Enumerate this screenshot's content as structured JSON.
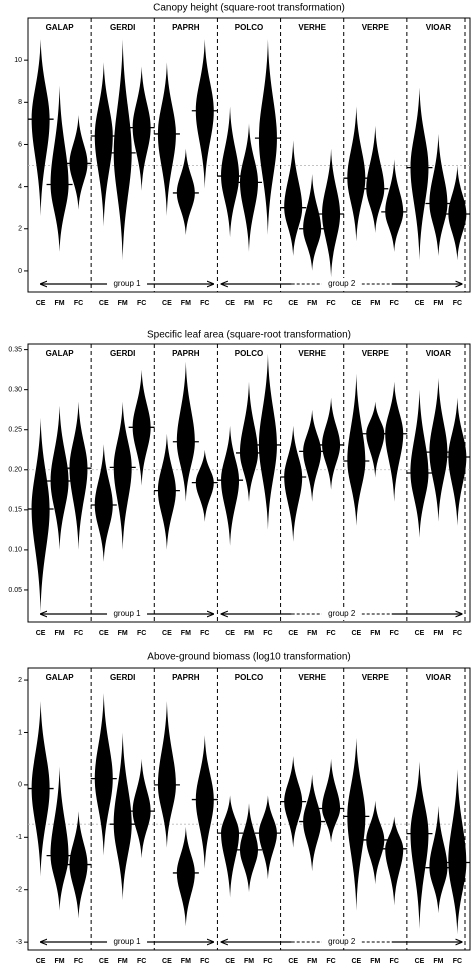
{
  "chart_data": [
    {
      "type": "violin",
      "title": "Canopy height (square-root transformation)",
      "species": [
        "GALAP",
        "GERDI",
        "PAPRH",
        "POLCO",
        "VERHE",
        "VERPE",
        "VIOAR"
      ],
      "categories": [
        "CE",
        "FM",
        "FC",
        "CE",
        "FM",
        "FC",
        "CE",
        "FM",
        "FC",
        "CE",
        "FM",
        "FC",
        "CE",
        "FM",
        "FC",
        "CE",
        "FM",
        "FC",
        "CE",
        "FM",
        "FC"
      ],
      "medians": [
        7.2,
        4.1,
        5.1,
        6.4,
        5.6,
        6.8,
        6.5,
        3.7,
        7.6,
        4.5,
        4.2,
        6.3,
        3.0,
        2.0,
        2.7,
        4.4,
        3.9,
        2.8,
        4.9,
        3.2,
        2.7
      ],
      "mins": [
        2.6,
        0.9,
        2.9,
        2.1,
        0.5,
        3.8,
        2.6,
        1.7,
        3.9,
        1.6,
        0.9,
        1.7,
        0.7,
        0.0,
        -0.3,
        1.4,
        1.8,
        0.9,
        0.5,
        0.7,
        0.5
      ],
      "maxs": [
        11.0,
        8.8,
        7.4,
        9.9,
        11.0,
        9.7,
        9.9,
        5.8,
        11.0,
        7.8,
        7.0,
        11.0,
        6.2,
        4.6,
        5.8,
        7.8,
        6.9,
        5.3,
        8.7,
        6.5,
        5.0
      ],
      "reference_line": 5.0,
      "ylim": [
        -1,
        12
      ],
      "yticks": [
        0,
        2,
        4,
        6,
        8,
        10
      ],
      "group_labels": [
        "group 1",
        "group 2"
      ],
      "color": "#000000"
    },
    {
      "type": "violin",
      "title": "Specific leaf area (square-root transformation)",
      "species": [
        "GALAP",
        "GERDI",
        "PAPRH",
        "POLCO",
        "VERHE",
        "VERPE",
        "VIOAR"
      ],
      "categories": [
        "CE",
        "FM",
        "FC",
        "CE",
        "FM",
        "FC",
        "CE",
        "FM",
        "FC",
        "CE",
        "FM",
        "FC",
        "CE",
        "FM",
        "FC",
        "CE",
        "FM",
        "FC",
        "CE",
        "FM",
        "FC"
      ],
      "medians": [
        0.151,
        0.186,
        0.202,
        0.156,
        0.203,
        0.253,
        0.174,
        0.235,
        0.184,
        0.187,
        0.221,
        0.231,
        0.191,
        0.223,
        0.231,
        0.211,
        0.245,
        0.245,
        0.196,
        0.222,
        0.216
      ],
      "mins": [
        0.022,
        0.1,
        0.1,
        0.085,
        0.1,
        0.18,
        0.1,
        0.16,
        0.135,
        0.105,
        0.16,
        0.125,
        0.11,
        0.16,
        0.175,
        0.13,
        0.19,
        0.16,
        0.115,
        0.135,
        0.13
      ],
      "maxs": [
        0.265,
        0.28,
        0.285,
        0.232,
        0.285,
        0.325,
        0.245,
        0.335,
        0.225,
        0.255,
        0.31,
        0.345,
        0.255,
        0.275,
        0.29,
        0.32,
        0.285,
        0.31,
        0.3,
        0.315,
        0.29
      ],
      "reference_line": 0.2,
      "ylim": [
        0.01,
        0.357
      ],
      "yticks": [
        0.05,
        {
          "value": 0.1,
          "label": "0.10"
        },
        0.15,
        {
          "value": 0.2,
          "label": "0.20"
        },
        0.25,
        {
          "value": 0.3,
          "label": "0.30"
        },
        0.35
      ],
      "group_labels": [
        "group 1",
        "group 2"
      ],
      "color": "#000000"
    },
    {
      "type": "violin",
      "title": "Above-ground biomass (log10 transformation)",
      "species": [
        "GALAP",
        "GERDI",
        "PAPRH",
        "POLCO",
        "VERHE",
        "VERPE",
        "VIOAR"
      ],
      "categories": [
        "CE",
        "FM",
        "FC",
        "CE",
        "FM",
        "FC",
        "CE",
        "FM",
        "FC",
        "CE",
        "FM",
        "FC",
        "CE",
        "FM",
        "FC",
        "CE",
        "FM",
        "FC",
        "CE",
        "FM",
        "FC"
      ],
      "medians": [
        -0.07,
        -1.35,
        -1.52,
        0.12,
        -0.75,
        -0.5,
        0.0,
        -1.68,
        -0.28,
        -0.92,
        -1.24,
        -0.92,
        -0.32,
        -0.7,
        -0.45,
        -0.6,
        -1.05,
        -1.22,
        -0.93,
        -1.58,
        -1.48
      ],
      "mins": [
        -1.75,
        -2.4,
        -2.55,
        -1.35,
        -2.2,
        -1.4,
        -1.2,
        -2.7,
        -1.6,
        -2.15,
        -2.05,
        -1.8,
        -1.2,
        -1.65,
        -1.1,
        -2.4,
        -1.9,
        -2.3,
        -2.75,
        -2.45,
        -2.85
      ],
      "maxs": [
        1.6,
        0.35,
        -0.5,
        1.75,
        1.0,
        0.5,
        1.6,
        -0.8,
        0.95,
        -0.2,
        -0.35,
        -0.2,
        0.55,
        0.2,
        0.5,
        0.9,
        -0.3,
        -0.6,
        0.45,
        -0.4,
        0.3
      ],
      "reference_line": -0.75,
      "ylim": [
        -3.15,
        2.23
      ],
      "yticks": [
        -3,
        -2,
        -1,
        0,
        1,
        2
      ],
      "group_labels": [
        "group 1",
        "group 2"
      ],
      "color": "#000000"
    }
  ]
}
